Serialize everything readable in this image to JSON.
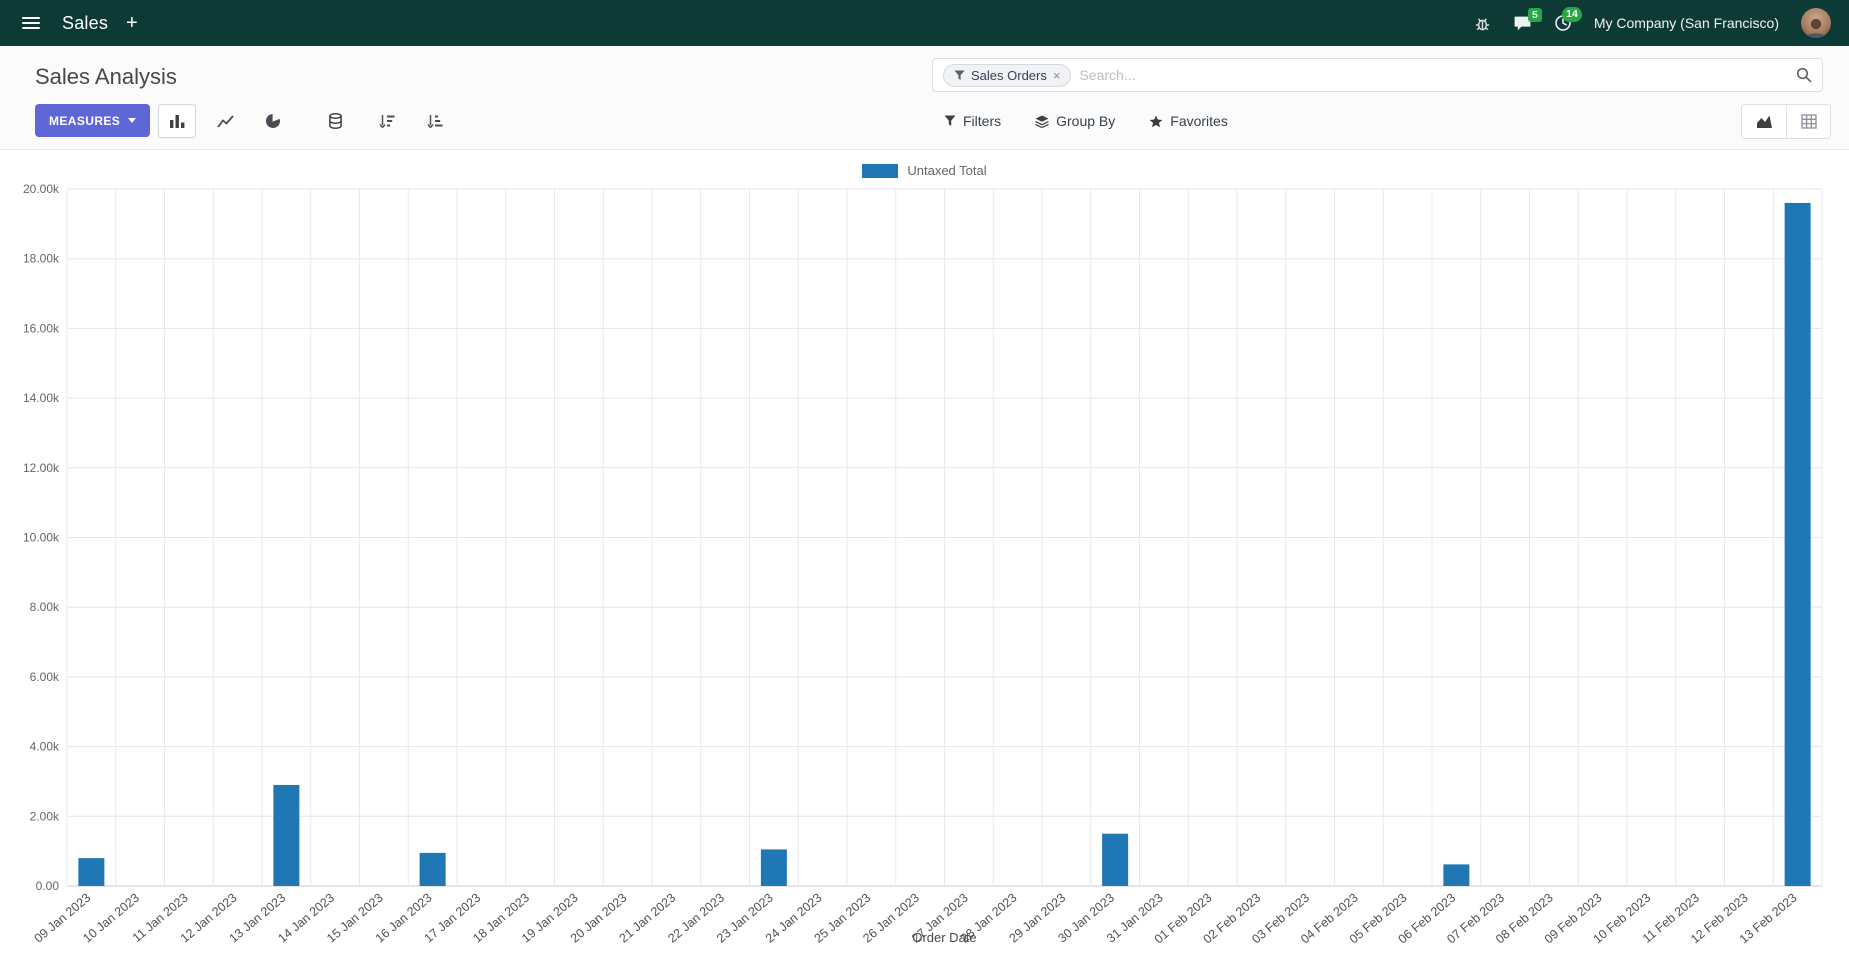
{
  "navbar": {
    "app_name": "Sales",
    "messages_badge": "5",
    "activities_badge": "14",
    "company_name": "My Company (San Francisco)"
  },
  "control_panel": {
    "title": "Sales Analysis",
    "search": {
      "facet_label": "Sales Orders",
      "facet_remove": "×",
      "placeholder": "Search..."
    },
    "measures_label": "MEASURES",
    "filters_label": "Filters",
    "group_by_label": "Group By",
    "favorites_label": "Favorites"
  },
  "chart_data": {
    "type": "bar",
    "title": "",
    "xlabel": "Order Date",
    "ylabel": "",
    "legend_position": "top",
    "grid": true,
    "ylim": [
      0,
      20000
    ],
    "ytick_step": 2000,
    "ytick_labels": [
      "0.00",
      "2.00k",
      "4.00k",
      "6.00k",
      "8.00k",
      "10.00k",
      "12.00k",
      "14.00k",
      "16.00k",
      "18.00k",
      "20.00k"
    ],
    "categories": [
      "09 Jan 2023",
      "10 Jan 2023",
      "11 Jan 2023",
      "12 Jan 2023",
      "13 Jan 2023",
      "14 Jan 2023",
      "15 Jan 2023",
      "16 Jan 2023",
      "17 Jan 2023",
      "18 Jan 2023",
      "19 Jan 2023",
      "20 Jan 2023",
      "21 Jan 2023",
      "22 Jan 2023",
      "23 Jan 2023",
      "24 Jan 2023",
      "25 Jan 2023",
      "26 Jan 2023",
      "27 Jan 2023",
      "28 Jan 2023",
      "29 Jan 2023",
      "30 Jan 2023",
      "31 Jan 2023",
      "01 Feb 2023",
      "02 Feb 2023",
      "03 Feb 2023",
      "04 Feb 2023",
      "05 Feb 2023",
      "06 Feb 2023",
      "07 Feb 2023",
      "08 Feb 2023",
      "09 Feb 2023",
      "10 Feb 2023",
      "11 Feb 2023",
      "12 Feb 2023",
      "13 Feb 2023"
    ],
    "series": [
      {
        "name": "Untaxed Total",
        "color": "#1f77b4",
        "values": [
          800,
          0,
          0,
          0,
          2900,
          0,
          0,
          950,
          0,
          0,
          0,
          0,
          0,
          0,
          1050,
          0,
          0,
          0,
          0,
          0,
          0,
          1500,
          0,
          0,
          0,
          0,
          0,
          0,
          620,
          0,
          0,
          0,
          0,
          0,
          0,
          19600
        ]
      }
    ]
  },
  "colors": {
    "navbar_bg": "#0e3a36",
    "primary_button": "#5f66d6",
    "badge_green": "#28a745",
    "bar_blue": "#1f77b4"
  }
}
